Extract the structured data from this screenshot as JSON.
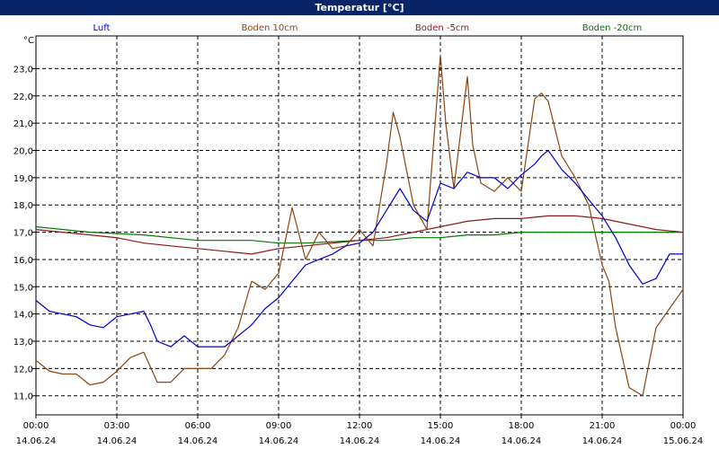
{
  "chart_data": {
    "type": "line",
    "title": "Temperatur [°C]",
    "ylabel": "°C",
    "xlabel": "",
    "ylim": [
      10.3,
      24.2
    ],
    "grid": true,
    "legend_placement": "top",
    "y_ticks": [
      "11,0",
      "12,0",
      "13,0",
      "14,0",
      "15,0",
      "16,0",
      "17,0",
      "18,0",
      "19,0",
      "20,0",
      "21,0",
      "22,0",
      "23,0"
    ],
    "x_ticks": [
      {
        "time": "00:00",
        "date": "14.06.24"
      },
      {
        "time": "03:00",
        "date": "14.06.24"
      },
      {
        "time": "06:00",
        "date": "14.06.24"
      },
      {
        "time": "09:00",
        "date": "14.06.24"
      },
      {
        "time": "12:00",
        "date": "14.06.24"
      },
      {
        "time": "15:00",
        "date": "14.06.24"
      },
      {
        "time": "18:00",
        "date": "14.06.24"
      },
      {
        "time": "21:00",
        "date": "14.06.24"
      },
      {
        "time": "00:00",
        "date": "15.06.24"
      }
    ],
    "series": [
      {
        "name": "Luft",
        "color": "#0000cc",
        "x": [
          0,
          0.5,
          1,
          1.5,
          2,
          2.5,
          3,
          3.5,
          4,
          4.25,
          4.5,
          4.75,
          5,
          5.5,
          6,
          6.5,
          7,
          7.5,
          8,
          8.5,
          9,
          9.5,
          10,
          10.5,
          11,
          11.5,
          12,
          12.5,
          13,
          13.5,
          14,
          14.5,
          15,
          15.5,
          16,
          16.5,
          17,
          17.5,
          18,
          18.5,
          18.75,
          19,
          19.5,
          20,
          20.5,
          21,
          21.5,
          22,
          22.5,
          23,
          23.5,
          24
        ],
        "y": [
          14.5,
          14.1,
          14.0,
          13.9,
          13.6,
          13.5,
          13.9,
          14.0,
          14.1,
          13.6,
          13.0,
          12.9,
          12.8,
          13.2,
          12.8,
          12.8,
          12.8,
          13.2,
          13.6,
          14.2,
          14.6,
          15.2,
          15.8,
          16.0,
          16.2,
          16.5,
          16.6,
          17.0,
          17.8,
          18.6,
          17.8,
          17.4,
          18.8,
          18.6,
          19.2,
          19.0,
          19.0,
          18.6,
          19.1,
          19.5,
          19.8,
          20.0,
          19.3,
          18.8,
          18.2,
          17.6,
          16.8,
          15.8,
          15.1,
          15.3,
          16.2,
          16.2
        ]
      },
      {
        "name": "Boden 10cm",
        "color": "#8b4513",
        "x": [
          0,
          0.5,
          1,
          1.5,
          2,
          2.5,
          3,
          3.5,
          4,
          4.5,
          5,
          5.5,
          6,
          6.5,
          7,
          7.5,
          8,
          8.5,
          9,
          9.5,
          10,
          10.5,
          11,
          11.5,
          12,
          12.5,
          13,
          13.25,
          13.5,
          14,
          14.5,
          15,
          15.2,
          15.5,
          16,
          16.2,
          16.5,
          17,
          17.5,
          18,
          18.5,
          18.75,
          19,
          19.5,
          20,
          20.5,
          21,
          21.25,
          21.5,
          22,
          22.5,
          23,
          23.5,
          24
        ],
        "y": [
          12.3,
          11.9,
          11.8,
          11.8,
          11.4,
          11.5,
          11.9,
          12.4,
          12.6,
          11.5,
          11.5,
          12.0,
          12.0,
          12.0,
          12.5,
          13.5,
          15.2,
          14.9,
          15.5,
          17.9,
          16.0,
          17.0,
          16.4,
          16.5,
          17.1,
          16.5,
          19.5,
          21.4,
          20.5,
          18.0,
          17.1,
          23.5,
          21.0,
          18.6,
          22.7,
          20.2,
          18.8,
          18.5,
          19.0,
          18.5,
          21.9,
          22.1,
          21.8,
          19.8,
          19.0,
          18.0,
          15.8,
          15.2,
          13.5,
          11.3,
          11.0,
          13.5,
          14.2,
          14.9
        ]
      },
      {
        "name": "Boden -5cm",
        "color": "#8b1a1a",
        "x": [
          0,
          1,
          2,
          3,
          4,
          5,
          6,
          7,
          8,
          9,
          10,
          11,
          12,
          13,
          14,
          15,
          16,
          17,
          18,
          19,
          20,
          21,
          22,
          23,
          24
        ],
        "y": [
          17.1,
          17.0,
          16.9,
          16.8,
          16.6,
          16.5,
          16.4,
          16.3,
          16.2,
          16.4,
          16.5,
          16.6,
          16.7,
          16.8,
          17.0,
          17.2,
          17.4,
          17.5,
          17.5,
          17.6,
          17.6,
          17.5,
          17.3,
          17.1,
          17.0
        ]
      },
      {
        "name": "Boden -20cm",
        "color": "#007700",
        "x": [
          0,
          2,
          4,
          5,
          6,
          8,
          9,
          10,
          12,
          13,
          14,
          15,
          16,
          17,
          18,
          19,
          20,
          21,
          22,
          23,
          24
        ],
        "y": [
          17.2,
          17.0,
          16.9,
          16.8,
          16.7,
          16.7,
          16.6,
          16.6,
          16.7,
          16.7,
          16.8,
          16.8,
          16.9,
          16.9,
          17.0,
          17.0,
          17.0,
          17.0,
          17.0,
          17.0,
          17.0
        ]
      }
    ]
  }
}
